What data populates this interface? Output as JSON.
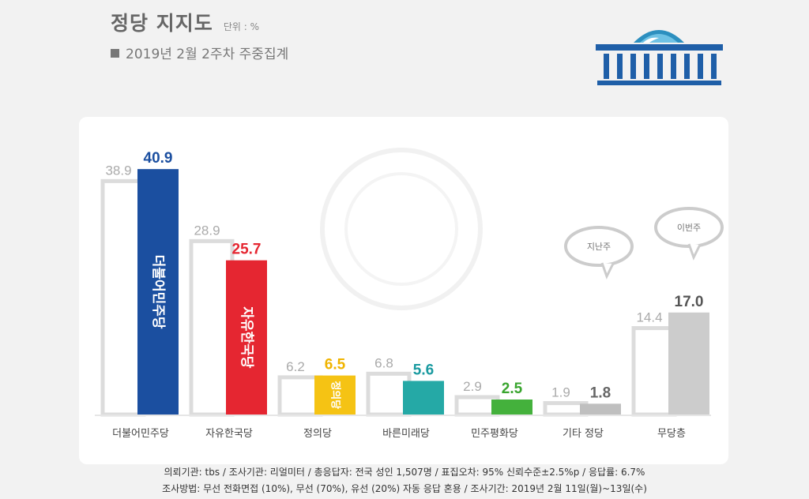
{
  "header": {
    "title": "정당 지지도",
    "unit": "단위 : %",
    "subtitle": "2019년 2월 2주차 주중집계"
  },
  "chart_data": {
    "type": "bar",
    "title": "정당 지지도",
    "unit": "%",
    "categories": [
      "더불어민주당",
      "자유한국당",
      "정의당",
      "바른미래당",
      "민주평화당",
      "기타 정당",
      "무당층"
    ],
    "series": [
      {
        "values": [
          38.9,
          28.9,
          6.2,
          6.8,
          2.9,
          1.9,
          14.4
        ]
      },
      {
        "values": [
          40.9,
          25.7,
          6.5,
          5.6,
          2.5,
          1.8,
          17.0
        ]
      }
    ],
    "bar_colors": [
      "#1b4fa0",
      "#e52631",
      "#f5c314",
      "#25a9a6",
      "#44b13c",
      "#bfbfbf",
      "#cccccc"
    ],
    "label_colors": [
      "#1b4fa0",
      "#e52631",
      "#f0b400",
      "#1a9aa0",
      "#3aa52f",
      "#666666",
      "#555555"
    ],
    "bar_texts": [
      "더불어민주당",
      "자유한국당",
      "정의당",
      "",
      "",
      "",
      ""
    ],
    "bubbles": [
      "지난주",
      "이번주"
    ],
    "ylim": [
      0,
      45
    ]
  },
  "footer": {
    "line1": "의뢰기관: tbs / 조사기관: 리얼미터 / 총응답자: 전국 성인 1,507명 / 표집오차: 95% 신뢰수준±2.5%p / 응답률: 6.7%",
    "line2": "조사방법: 무선 전화면접 (10%), 무선 (70%), 유선 (20%) 자동 응답 혼용 / 조사기간: 2019년 2월 11일(월)~13일(수)"
  }
}
